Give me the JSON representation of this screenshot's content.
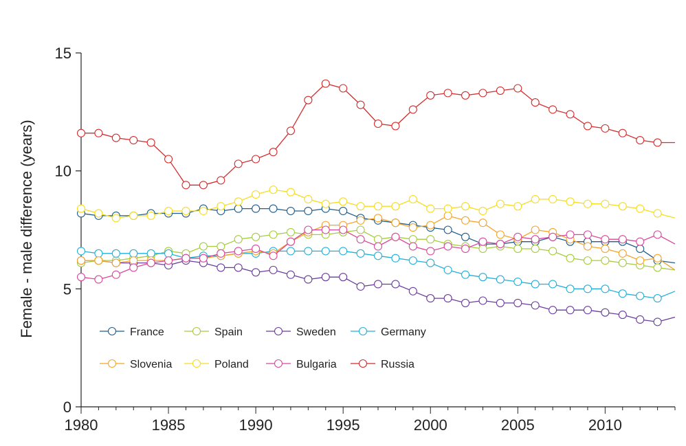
{
  "chart_data": {
    "type": "line",
    "ylabel": "Female - male difference (years)",
    "xlabel": "",
    "xlim": [
      1980,
      2014
    ],
    "ylim": [
      0,
      15
    ],
    "x_ticks": [
      1980,
      1985,
      1990,
      1995,
      2000,
      2005,
      2010
    ],
    "y_ticks": [
      0,
      5,
      10,
      15
    ],
    "grid": false,
    "legend_position": "bottom-left",
    "x": [
      1980,
      1981,
      1982,
      1983,
      1984,
      1985,
      1986,
      1987,
      1988,
      1989,
      1990,
      1991,
      1992,
      1993,
      1994,
      1995,
      1996,
      1997,
      1998,
      1999,
      2000,
      2001,
      2002,
      2003,
      2004,
      2005,
      2006,
      2007,
      2008,
      2009,
      2010,
      2011,
      2012,
      2013,
      2014
    ],
    "series": [
      {
        "name": "France",
        "color": "#1f5c8a",
        "values": [
          8.2,
          8.1,
          8.1,
          8.1,
          8.2,
          8.2,
          8.2,
          8.4,
          8.3,
          8.4,
          8.4,
          8.4,
          8.3,
          8.3,
          8.4,
          8.3,
          8.0,
          7.9,
          7.8,
          7.7,
          7.6,
          7.5,
          7.2,
          6.9,
          6.9,
          7.0,
          7.0,
          7.2,
          7.0,
          7.0,
          7.0,
          7.0,
          6.7,
          6.2,
          6.1
        ]
      },
      {
        "name": "Spain",
        "color": "#a5cc3a",
        "values": [
          6.1,
          6.2,
          6.2,
          6.3,
          6.4,
          6.6,
          6.5,
          6.8,
          6.8,
          7.1,
          7.2,
          7.3,
          7.4,
          7.3,
          7.3,
          7.4,
          7.5,
          7.1,
          7.2,
          7.1,
          7.1,
          6.9,
          6.8,
          6.7,
          6.8,
          6.7,
          6.7,
          6.6,
          6.3,
          6.2,
          6.2,
          6.1,
          6.0,
          5.9,
          5.8
        ]
      },
      {
        "name": "Sweden",
        "color": "#6a3b9c",
        "values": [
          6.2,
          6.2,
          6.1,
          6.1,
          6.1,
          6.0,
          6.2,
          6.1,
          5.9,
          5.9,
          5.7,
          5.8,
          5.6,
          5.4,
          5.5,
          5.5,
          5.1,
          5.2,
          5.2,
          4.9,
          4.6,
          4.6,
          4.4,
          4.5,
          4.4,
          4.4,
          4.3,
          4.1,
          4.1,
          4.1,
          4.0,
          3.9,
          3.7,
          3.6,
          3.8
        ]
      },
      {
        "name": "Germany",
        "color": "#1fb0d9",
        "values": [
          6.6,
          6.5,
          6.5,
          6.5,
          6.5,
          6.5,
          6.3,
          6.4,
          6.4,
          6.5,
          6.5,
          6.6,
          6.6,
          6.6,
          6.6,
          6.6,
          6.5,
          6.4,
          6.3,
          6.2,
          6.1,
          5.8,
          5.6,
          5.5,
          5.4,
          5.3,
          5.2,
          5.2,
          5.0,
          5.0,
          5.0,
          4.8,
          4.7,
          4.6,
          4.9
        ]
      },
      {
        "name": "Slovenia",
        "color": "#f4a429",
        "values": [
          6.2,
          6.2,
          6.1,
          6.2,
          6.2,
          6.2,
          6.3,
          6.3,
          6.4,
          6.5,
          6.6,
          6.5,
          7.0,
          7.4,
          7.7,
          7.7,
          7.9,
          8.0,
          7.8,
          7.6,
          7.7,
          8.1,
          7.9,
          7.8,
          7.3,
          7.1,
          7.5,
          7.4,
          7.1,
          6.8,
          6.7,
          6.5,
          6.2,
          6.3,
          5.8
        ]
      },
      {
        "name": "Poland",
        "color": "#f6dc1e",
        "values": [
          8.4,
          8.2,
          8.0,
          8.1,
          8.1,
          8.3,
          8.3,
          8.3,
          8.5,
          8.7,
          9.0,
          9.2,
          9.1,
          8.8,
          8.6,
          8.7,
          8.5,
          8.5,
          8.5,
          8.8,
          8.4,
          8.4,
          8.5,
          8.3,
          8.6,
          8.5,
          8.8,
          8.8,
          8.7,
          8.6,
          8.6,
          8.5,
          8.4,
          8.2,
          8.0
        ]
      },
      {
        "name": "Bulgaria",
        "color": "#d9489a",
        "values": [
          5.5,
          5.4,
          5.6,
          5.9,
          6.1,
          6.2,
          6.3,
          6.3,
          6.5,
          6.6,
          6.7,
          6.4,
          7.0,
          7.5,
          7.5,
          7.5,
          7.1,
          6.8,
          7.2,
          6.8,
          6.6,
          6.8,
          6.7,
          7.0,
          6.9,
          7.2,
          7.1,
          7.2,
          7.3,
          7.3,
          7.1,
          7.1,
          7.0,
          7.3,
          6.9
        ]
      },
      {
        "name": "Russia",
        "color": "#d42b2b",
        "values": [
          11.6,
          11.6,
          11.4,
          11.3,
          11.2,
          10.5,
          9.4,
          9.4,
          9.6,
          10.3,
          10.5,
          10.8,
          11.7,
          13.0,
          13.7,
          13.5,
          12.8,
          12.0,
          11.9,
          12.6,
          13.2,
          13.3,
          13.2,
          13.3,
          13.4,
          13.5,
          12.9,
          12.6,
          12.4,
          11.9,
          11.8,
          11.6,
          11.3,
          11.2,
          11.2
        ]
      }
    ]
  }
}
